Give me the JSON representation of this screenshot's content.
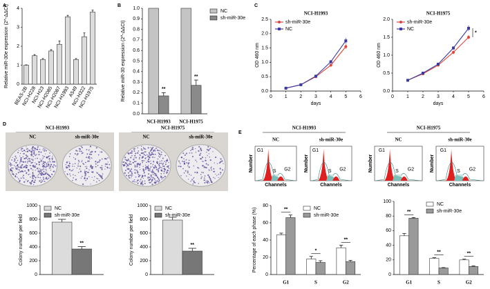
{
  "chart_data": [
    {
      "type": "bar",
      "panel": "A",
      "ylabel": "Relative miR-30e expression (2^-ΔΔCt)",
      "categories": [
        "BEAS-2B",
        "NCI-H228",
        "NCI-H23",
        "NCI-H2085",
        "NCI-H2087",
        "NCI-H1993",
        "A549",
        "NCI-H322",
        "NCI-H1975"
      ],
      "values": [
        1.0,
        1.5,
        1.3,
        1.75,
        2.1,
        3.55,
        1.3,
        2.5,
        3.8
      ],
      "errors": [
        0.02,
        0.06,
        0.05,
        0.07,
        0.18,
        0.08,
        0.05,
        0.2,
        0.1
      ],
      "color": "#dcdcdc",
      "rotate_labels": true,
      "ylim": [
        0,
        4
      ],
      "yticks": [
        0,
        1,
        2,
        3,
        4
      ]
    },
    {
      "type": "bar",
      "panel": "B",
      "ylabel": "Relative miR-30 expression (2^-ΔΔCt)",
      "categories": [
        "NCI-H1993",
        "NCI-H1975"
      ],
      "series": [
        {
          "name": "NC",
          "color": "#c4c4c4",
          "values": [
            1.0,
            1.0
          ]
        },
        {
          "name": "sh-miR-30e",
          "color": "#8a8a8a",
          "values": [
            0.17,
            0.27
          ],
          "errors": [
            0.03,
            0.05
          ]
        }
      ],
      "significance": [
        "**",
        "**"
      ],
      "legend": "upper right",
      "ylim": [
        0,
        1.0
      ],
      "yticks": [
        {
          "value": 0,
          "label": "0.0"
        },
        0.1,
        0.2,
        0.3,
        0.4,
        0.5,
        0.6,
        0.7,
        0.8,
        0.9,
        {
          "value": 1.0,
          "label": "1.0"
        }
      ]
    },
    {
      "type": "line",
      "panel": "C",
      "title": "NCI-H1993",
      "ylabel": "OD 460 nm",
      "xlabel": "days",
      "x": [
        1,
        2,
        3,
        4,
        5
      ],
      "series": [
        {
          "name": "sh-miR-30e",
          "color": "#e0443a",
          "marker": "circle",
          "values": [
            0.1,
            0.22,
            0.5,
            0.9,
            1.55
          ],
          "errors": [
            0.01,
            0.02,
            0.03,
            0.05,
            0.08
          ]
        },
        {
          "name": "NC",
          "color": "#3a3aa0",
          "marker": "square",
          "values": [
            0.1,
            0.22,
            0.52,
            1.02,
            1.75
          ],
          "errors": [
            0.01,
            0.02,
            0.03,
            0.06,
            0.1
          ]
        }
      ],
      "legend": "upper left",
      "xlim": [
        0,
        6
      ],
      "xticks": [
        0,
        1,
        2,
        3,
        4,
        5,
        6
      ],
      "ylim": [
        0,
        2.5
      ],
      "yticks": [
        {
          "value": 0,
          "label": "0.0"
        },
        0.5,
        {
          "value": 1,
          "label": "1.0"
        },
        1.5,
        {
          "value": 2,
          "label": "2.0"
        },
        2.5
      ]
    },
    {
      "type": "line",
      "title": "NCI-H1975",
      "ylabel": "OD 460 nm",
      "xlabel": "days",
      "annotation": "*",
      "x": [
        1,
        2,
        3,
        4,
        5
      ],
      "series": [
        {
          "name": "sh-miR-30e",
          "color": "#e0443a",
          "marker": "circle",
          "values": [
            0.3,
            0.48,
            0.72,
            1.08,
            1.5
          ],
          "errors": [
            0.01,
            0.02,
            0.03,
            0.05,
            0.06
          ]
        },
        {
          "name": "NC",
          "color": "#3a3aa0",
          "marker": "square",
          "values": [
            0.3,
            0.5,
            0.75,
            1.2,
            1.75
          ],
          "errors": [
            0.01,
            0.02,
            0.03,
            0.05,
            0.08
          ]
        }
      ],
      "legend": "upper left",
      "xlim": [
        0,
        6
      ],
      "xticks": [
        0,
        1,
        2,
        3,
        4,
        5,
        6
      ],
      "ylim": [
        0,
        2.0
      ],
      "yticks": [
        {
          "value": 0,
          "label": "0.0"
        },
        0.5,
        {
          "value": 1,
          "label": "1.0"
        },
        1.5,
        {
          "value": 2,
          "label": "2.0"
        }
      ]
    },
    {
      "type": "bar",
      "panel": "D",
      "title": "NCI-H1993",
      "ylabel": "Colony number per field",
      "categories": [
        null
      ],
      "series": [
        {
          "name": "NC",
          "color": "#dcdcdc",
          "values": [
            760
          ],
          "errors": [
            40
          ]
        },
        {
          "name": "sh-miR-30e",
          "color": "#777777",
          "values": [
            370
          ],
          "errors": [
            35
          ]
        }
      ],
      "significance": [
        "**"
      ],
      "legend": "upper left",
      "ylim": [
        0,
        1000
      ],
      "yticks": [
        0,
        200,
        400,
        600,
        800,
        1000
      ]
    },
    {
      "type": "bar",
      "title": "NCI-H1975",
      "ylabel": "Colony number per field",
      "categories": [
        null
      ],
      "series": [
        {
          "name": "NC",
          "color": "#dcdcdc",
          "values": [
            790
          ],
          "errors": [
            40
          ]
        },
        {
          "name": "sh-miR-30e",
          "color": "#777777",
          "values": [
            340
          ],
          "errors": [
            40
          ]
        }
      ],
      "significance": [
        "**"
      ],
      "legend": "upper left",
      "ylim": [
        0,
        1000
      ],
      "yticks": [
        0,
        200,
        400,
        600,
        800,
        1000
      ]
    },
    {
      "type": "bar",
      "panel": "E",
      "title": "NCI-H1993",
      "ylabel": "Percentage of each phase (%)",
      "flow_labels": {
        "y": "Number",
        "x": "Channels"
      },
      "categories": [
        "G1",
        "S",
        "G2"
      ],
      "series": [
        {
          "name": "NC",
          "color": "#ffffff",
          "values": [
            46,
            18,
            31
          ],
          "errors": [
            2,
            3,
            3
          ]
        },
        {
          "name": "sh-miR-30e",
          "color": "#9a9a9a",
          "values": [
            66,
            14,
            15
          ],
          "errors": [
            3,
            2,
            1.5
          ]
        }
      ],
      "significance": [
        "**",
        "*",
        "**"
      ],
      "significance_bracket": true,
      "legend": "upper center",
      "ylim": [
        0,
        80
      ],
      "yticks": [
        0,
        20,
        40,
        60,
        80
      ]
    },
    {
      "type": "bar",
      "title": "NCI-H1975",
      "flow_labels": {
        "y": "Number",
        "x": "Channels"
      },
      "categories": [
        "G1",
        "S",
        "G2"
      ],
      "series": [
        {
          "name": "NC",
          "color": "#ffffff",
          "values": [
            53,
            22,
            20
          ],
          "errors": [
            3,
            1,
            1
          ]
        },
        {
          "name": "sh-miR-30e",
          "color": "#9a9a9a",
          "values": [
            77,
            9,
            11
          ],
          "errors": [
            1,
            0.5,
            0.8
          ]
        }
      ],
      "significance": [
        "**",
        "**",
        "**"
      ],
      "significance_bracket": true,
      "legend": "upper center",
      "ylim": [
        0,
        100
      ],
      "yticks": [
        0,
        20,
        40,
        60,
        80,
        100
      ]
    }
  ]
}
